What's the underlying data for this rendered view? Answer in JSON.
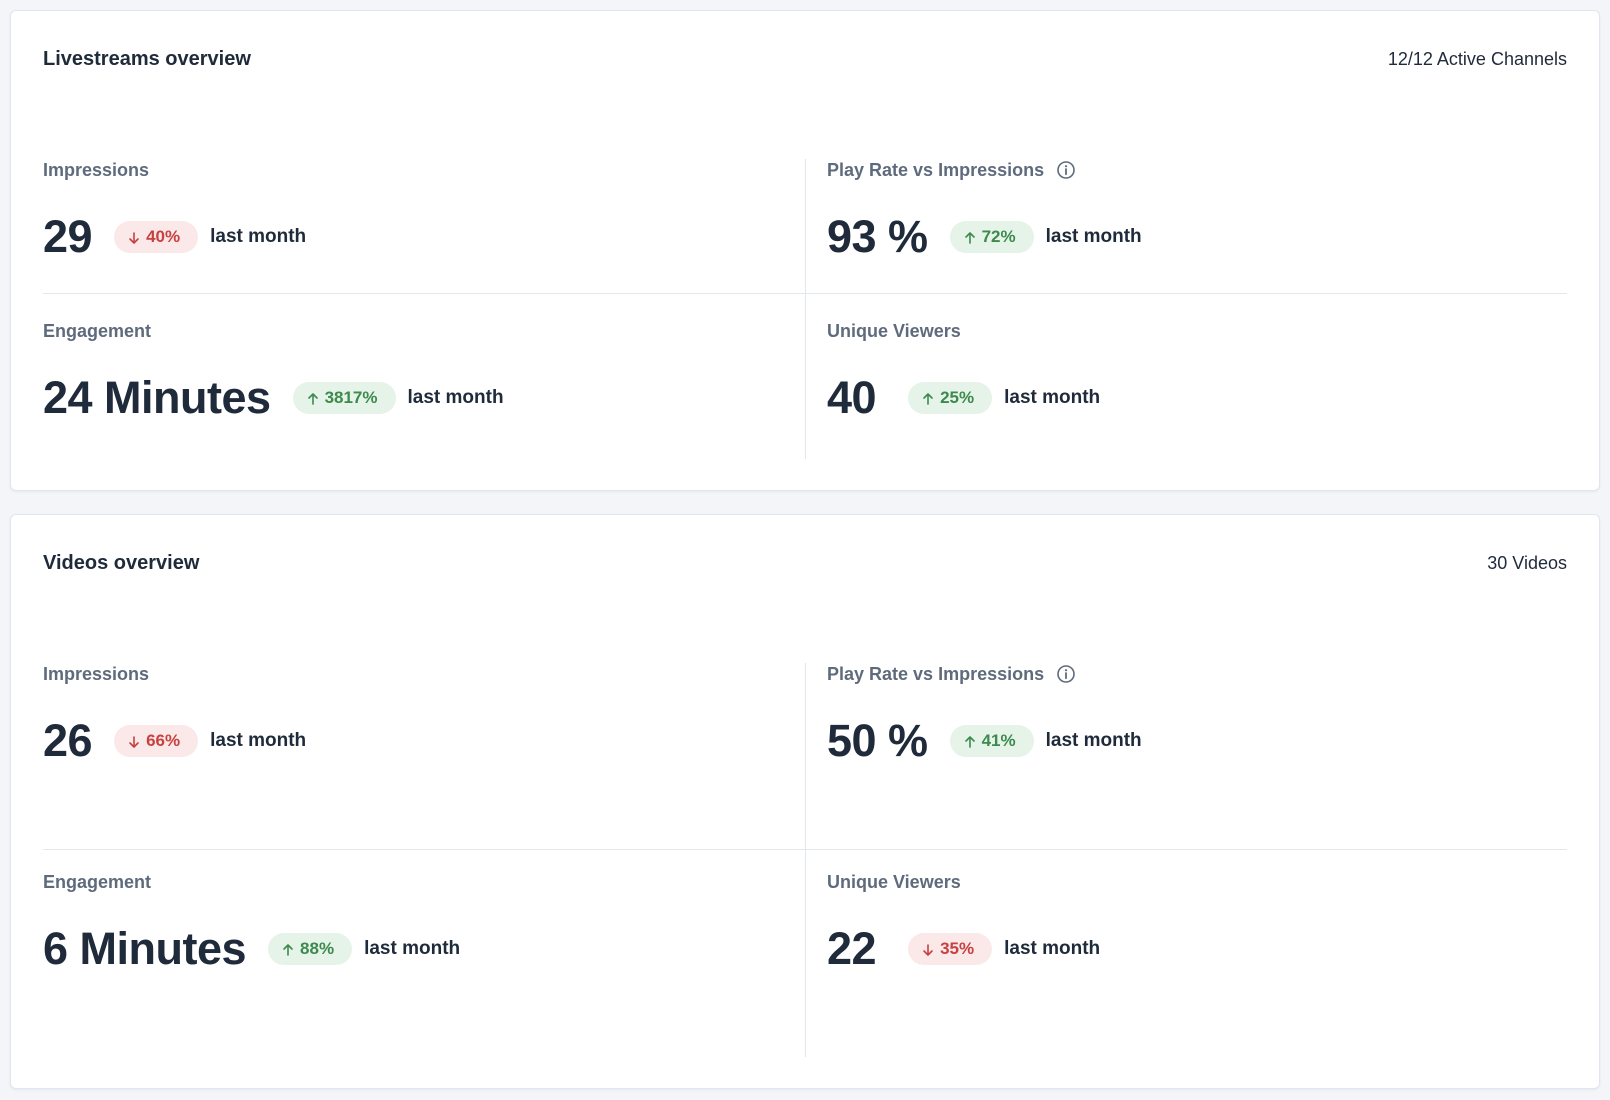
{
  "livestreams": {
    "title": "Livestreams overview",
    "meta": "12/12 Active Channels",
    "impressions": {
      "label": "Impressions",
      "value": "29",
      "change": "40%",
      "trend": "down",
      "period": "last month"
    },
    "play_rate": {
      "label": "Play Rate vs Impressions",
      "value": "93 %",
      "change": "72%",
      "trend": "up",
      "period": "last month"
    },
    "engagement": {
      "label": "Engagement",
      "value": "24 Minutes",
      "change": "3817%",
      "trend": "up",
      "period": "last month"
    },
    "unique_viewers": {
      "label": "Unique Viewers",
      "value": "40",
      "change": "25%",
      "trend": "up",
      "period": "last month"
    }
  },
  "videos": {
    "title": "Videos overview",
    "meta": "30 Videos",
    "impressions": {
      "label": "Impressions",
      "value": "26",
      "change": "66%",
      "trend": "down",
      "period": "last month"
    },
    "play_rate": {
      "label": "Play Rate vs Impressions",
      "value": "50 %",
      "change": "41%",
      "trend": "up",
      "period": "last month"
    },
    "engagement": {
      "label": "Engagement",
      "value": "6 Minutes",
      "change": "88%",
      "trend": "up",
      "period": "last month"
    },
    "unique_viewers": {
      "label": "Unique Viewers",
      "value": "22",
      "change": "35%",
      "trend": "down",
      "period": "last month"
    }
  },
  "icons": {
    "info": "info-circle-icon",
    "up": "arrow-up-icon",
    "down": "arrow-down-icon"
  },
  "colors": {
    "down_text": "#c84040",
    "down_bg": "#fbe9e9",
    "up_text": "#3d8a4e",
    "up_bg": "#e6f3e8"
  }
}
